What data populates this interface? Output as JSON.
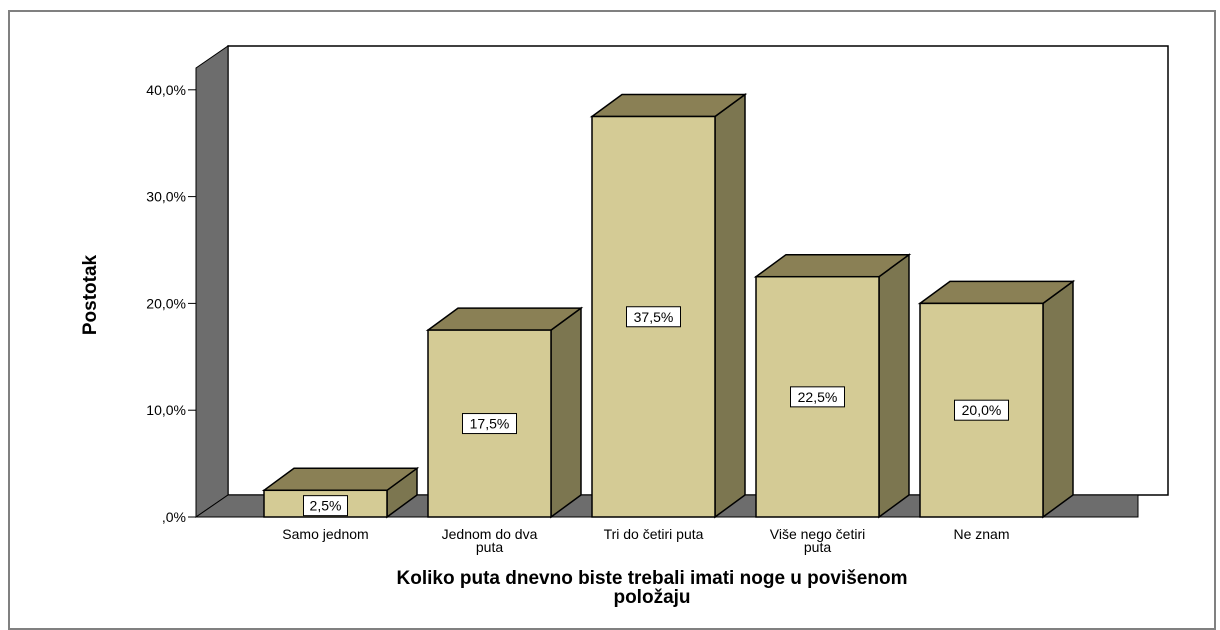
{
  "chart_data": {
    "type": "bar",
    "categories": [
      "Samo jednom",
      "Jednom do dva puta",
      "Tri do četiri puta",
      "Više nego četiri puta",
      "Ne znam"
    ],
    "category_lines": [
      [
        "Samo jednom"
      ],
      [
        "Jednom do dva",
        "puta"
      ],
      [
        "Tri do četiri puta"
      ],
      [
        "Više nego četiri",
        "puta"
      ],
      [
        "Ne znam"
      ]
    ],
    "values": [
      2.5,
      17.5,
      37.5,
      22.5,
      20.0
    ],
    "data_labels": [
      "2,5%",
      "17,5%",
      "37,5%",
      "22,5%",
      "20,0%"
    ],
    "yticks": [
      0,
      10,
      20,
      30,
      40
    ],
    "ytick_labels": [
      ",0%",
      "10,0%",
      "20,0%",
      "30,0%",
      "40,0%"
    ],
    "ylim": [
      0,
      40
    ],
    "ylabel": "Postotak",
    "xlabel_lines": [
      "Koliko puta dnevno biste trebali imati noge u povišenom",
      "položaju"
    ],
    "style": "3d",
    "grid": false,
    "legend": "none"
  },
  "colors": {
    "bar_front": "#d4cb95",
    "bar_top": "#8a8055",
    "bar_side": "#7c7650",
    "wall": "#6d6d6d",
    "outline": "#000000",
    "background": "#ffffff"
  }
}
